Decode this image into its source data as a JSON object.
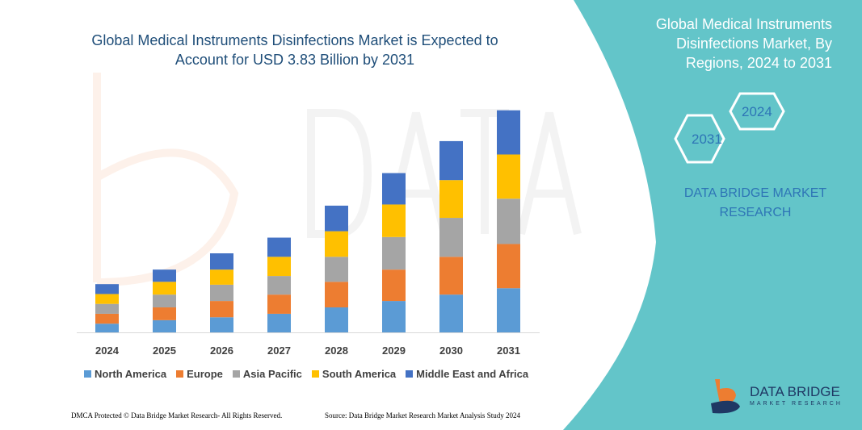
{
  "header": {
    "title": "Global Medical Instruments Disinfections Market is Expected to Account for USD 3.83 Billion by 2031"
  },
  "side_panel": {
    "title": "Global Medical Instruments Disinfections Market, By Regions, 2024 to 2031",
    "hex_years": [
      "2024",
      "2031"
    ],
    "brand": "DATA BRIDGE MARKET RESEARCH",
    "logo_text": "DATA BRIDGE",
    "logo_sub": "MARKET RESEARCH",
    "color": "#63c5c9"
  },
  "footer": {
    "left": "DMCA Protected © Data Bridge Market Research- All Rights Reserved.",
    "right": "Source: Data Bridge Market Research Market Analysis Study 2024"
  },
  "chart_data": {
    "type": "bar",
    "stacked": true,
    "title": "Global Medical Instruments Disinfections Market is Expected to Account for USD 3.83 Billion by 2031",
    "categories": [
      "2024",
      "2025",
      "2026",
      "2027",
      "2028",
      "2029",
      "2030",
      "2031"
    ],
    "legend_position": "bottom",
    "grid": false,
    "y_axis_shown": false,
    "series": [
      {
        "name": "North America",
        "color": "#5b9bd5",
        "values": [
          0.15,
          0.21,
          0.26,
          0.32,
          0.43,
          0.54,
          0.65,
          0.76
        ]
      },
      {
        "name": "Europe",
        "color": "#ed7d31",
        "values": [
          0.17,
          0.22,
          0.28,
          0.33,
          0.44,
          0.54,
          0.65,
          0.76
        ]
      },
      {
        "name": "Asia Pacific",
        "color": "#a5a5a5",
        "values": [
          0.17,
          0.22,
          0.28,
          0.32,
          0.43,
          0.56,
          0.67,
          0.78
        ]
      },
      {
        "name": "South America",
        "color": "#ffc000",
        "values": [
          0.17,
          0.22,
          0.26,
          0.33,
          0.44,
          0.56,
          0.65,
          0.76
        ]
      },
      {
        "name": "Middle East and Africa",
        "color": "#4472c4",
        "values": [
          0.17,
          0.21,
          0.28,
          0.33,
          0.44,
          0.54,
          0.67,
          0.76
        ]
      }
    ]
  }
}
